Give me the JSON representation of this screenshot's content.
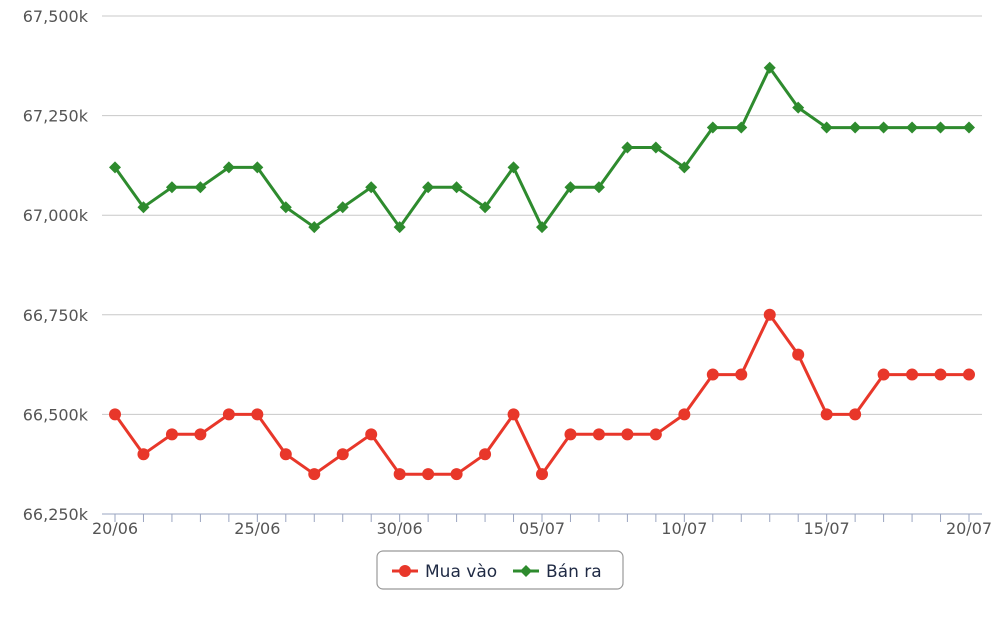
{
  "chart_data": {
    "type": "line",
    "title": "",
    "xlabel": "",
    "ylabel": "",
    "x": [
      "20/06",
      "21/06",
      "22/06",
      "23/06",
      "24/06",
      "25/06",
      "26/06",
      "27/06",
      "28/06",
      "29/06",
      "30/06",
      "01/07",
      "02/07",
      "03/07",
      "04/07",
      "05/07",
      "06/07",
      "07/07",
      "08/07",
      "09/07",
      "10/07",
      "11/07",
      "12/07",
      "13/07",
      "14/07",
      "15/07",
      "16/07",
      "17/07",
      "18/07",
      "19/07",
      "20/07"
    ],
    "x_tick_labels": [
      "20/06",
      "25/06",
      "30/06",
      "05/07",
      "10/07",
      "15/07",
      "20/07"
    ],
    "ylim": [
      66250,
      67500
    ],
    "y_tick_labels": [
      "66,250k",
      "66,500k",
      "66,750k",
      "67,000k",
      "67,250k",
      "67,500k"
    ],
    "y_tick_values": [
      66250,
      66500,
      66750,
      67000,
      67250,
      67500
    ],
    "grid": true,
    "legend_position": "bottom-center",
    "series": [
      {
        "name": "Mua vào",
        "color": "#e8372a",
        "marker": "circle",
        "values": [
          66500,
          66400,
          66450,
          66450,
          66500,
          66500,
          66400,
          66350,
          66400,
          66450,
          66350,
          66350,
          66350,
          66400,
          66500,
          66350,
          66450,
          66450,
          66450,
          66450,
          66500,
          66600,
          66600,
          66750,
          66650,
          66500,
          66500,
          66600,
          66600,
          66600,
          66600
        ]
      },
      {
        "name": "Bán ra",
        "color": "#2e8b2e",
        "marker": "diamond",
        "values": [
          67120,
          67020,
          67070,
          67070,
          67120,
          67120,
          67020,
          66970,
          67020,
          67070,
          66970,
          67070,
          67070,
          67020,
          67120,
          66970,
          67070,
          67070,
          67170,
          67170,
          67120,
          67220,
          67220,
          67370,
          67270,
          67220,
          67220,
          67220,
          67220,
          67220,
          67220
        ]
      }
    ]
  },
  "colors": {
    "grid": "#c8c8c8",
    "axis": "#9aa4c0",
    "legend_border": "#999999"
  }
}
